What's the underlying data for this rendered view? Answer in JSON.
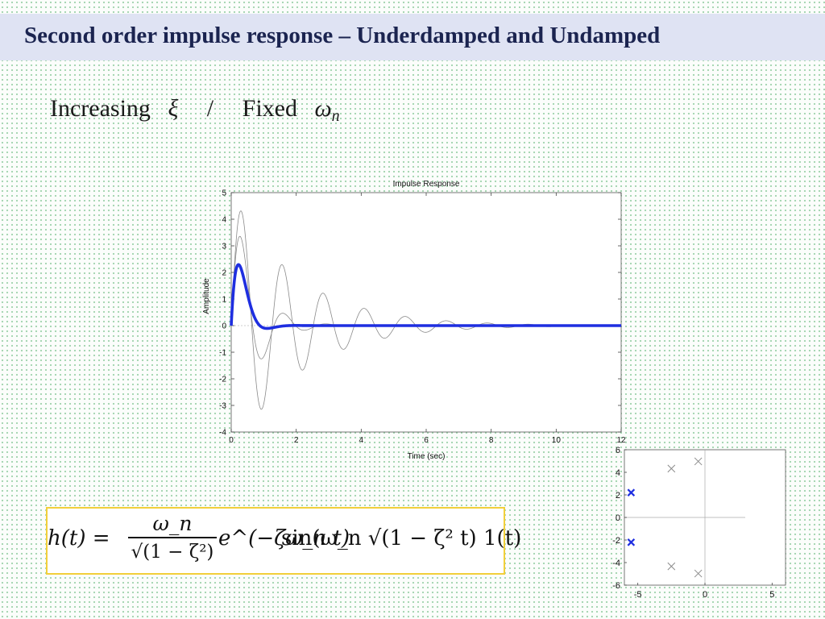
{
  "slide": {
    "title": "Second order impulse response – Underdamped and Undamped",
    "subtitle": {
      "word1": "Increasing",
      "sym1": "ξ",
      "sep": "/",
      "word2": "Fixed",
      "sym2": "ω",
      "sym2_sub": "n"
    },
    "formula": {
      "lhs": "h(t) =",
      "num": "ω_n",
      "den": "√(1 − ζ²)",
      "exp": "e^(−ζω_n t)",
      "rest": "sin(ω_n √(1 − ζ² t) 1(t)"
    }
  },
  "chart_data": [
    {
      "type": "line",
      "title": "Impulse Response",
      "xlabel": "Time (sec)",
      "ylabel": "Amplitude",
      "xlim": [
        0,
        12
      ],
      "ylim": [
        -4,
        5
      ],
      "xticks": [
        0,
        2,
        4,
        6,
        8,
        10,
        12
      ],
      "yticks": [
        -4,
        -3,
        -2,
        -1,
        0,
        1,
        2,
        3,
        4,
        5
      ],
      "grid": false,
      "series": [
        {
          "wn": 5,
          "zeta": 0.1,
          "color": "#8a8a8a",
          "width": "thin",
          "peak": {
            "t": 0.31,
            "amplitude": 4.3
          }
        },
        {
          "wn": 5,
          "zeta": 0.3,
          "color": "#8a8a8a",
          "width": "thin",
          "peak": {
            "t": 0.31,
            "amplitude": 2.7
          }
        },
        {
          "wn": 5,
          "zeta": 0.7,
          "color": "#1e2ee0",
          "width": "thick",
          "peak": {
            "t": 0.25,
            "amplitude": 1.9
          }
        }
      ]
    },
    {
      "type": "scatter",
      "title": "",
      "xlabel": "",
      "ylabel": "",
      "xlim": [
        -6,
        6
      ],
      "ylim": [
        -6,
        6
      ],
      "xticks": [
        -5,
        0,
        5
      ],
      "yticks": [
        -6,
        -4,
        -2,
        0,
        2,
        4,
        6
      ],
      "grid": false,
      "series": [
        {
          "color": "#888888",
          "marker": "x",
          "points": [
            [
              -0.5,
              4.97
            ],
            [
              -0.5,
              -4.97
            ],
            [
              -2.5,
              4.33
            ],
            [
              -2.5,
              -4.33
            ]
          ]
        },
        {
          "color": "#1e2ee0",
          "marker": "x",
          "points": [
            [
              -5.5,
              2.2
            ],
            [
              -5.5,
              -2.2
            ]
          ]
        }
      ]
    }
  ]
}
